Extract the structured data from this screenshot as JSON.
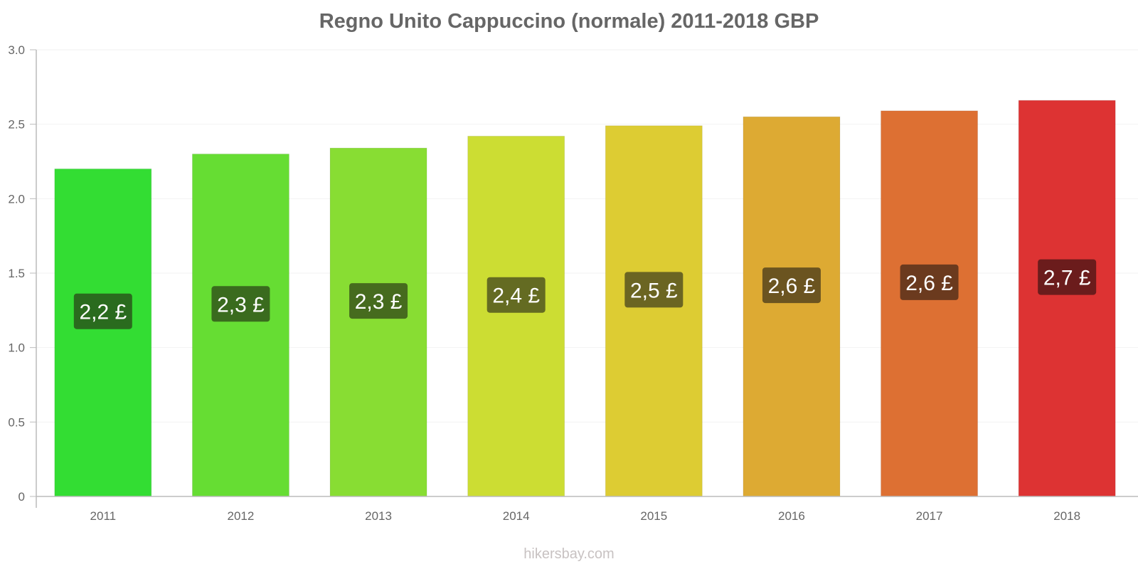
{
  "title": "Regno Unito Cappuccino (normale) 2011-2018 GBP",
  "watermark": "hikersbay.com",
  "y_ticks": [
    "0",
    "0.5",
    "1.0",
    "1.5",
    "2.0",
    "2.5",
    "3.0"
  ],
  "bars": [
    {
      "year": "2011",
      "value": 2.2,
      "label": "2,2 £",
      "color": "#33dd33",
      "label_bg": "#2a6b1e"
    },
    {
      "year": "2012",
      "value": 2.3,
      "label": "2,3 £",
      "color": "#66dd33",
      "label_bg": "#3a6b1e"
    },
    {
      "year": "2013",
      "value": 2.34,
      "label": "2,3 £",
      "color": "#88dd33",
      "label_bg": "#466b1e"
    },
    {
      "year": "2014",
      "value": 2.42,
      "label": "2,4 £",
      "color": "#ccdd33",
      "label_bg": "#646b22"
    },
    {
      "year": "2015",
      "value": 2.49,
      "label": "2,5 £",
      "color": "#ddcc33",
      "label_bg": "#6b6522"
    },
    {
      "year": "2016",
      "value": 2.55,
      "label": "2,6 £",
      "color": "#ddaa33",
      "label_bg": "#6b5420"
    },
    {
      "year": "2017",
      "value": 2.59,
      "label": "2,6 £",
      "color": "#dd7033",
      "label_bg": "#6b3a1e"
    },
    {
      "year": "2018",
      "value": 2.66,
      "label": "2,7 £",
      "color": "#dd3333",
      "label_bg": "#6b1c1c"
    }
  ],
  "chart_data": {
    "type": "bar",
    "title": "Regno Unito Cappuccino (normale) 2011-2018 GBP",
    "categories": [
      "2011",
      "2012",
      "2013",
      "2014",
      "2015",
      "2016",
      "2017",
      "2018"
    ],
    "values": [
      2.2,
      2.3,
      2.34,
      2.42,
      2.49,
      2.55,
      2.59,
      2.66
    ],
    "data_labels": [
      "2,2 £",
      "2,3 £",
      "2,3 £",
      "2,4 £",
      "2,5 £",
      "2,6 £",
      "2,6 £",
      "2,7 £"
    ],
    "xlabel": "",
    "ylabel": "",
    "ylim": [
      0,
      3.0
    ],
    "yticks": [
      0,
      0.5,
      1.0,
      1.5,
      2.0,
      2.5,
      3.0
    ],
    "grid": true,
    "legend": null,
    "unit": "GBP"
  }
}
